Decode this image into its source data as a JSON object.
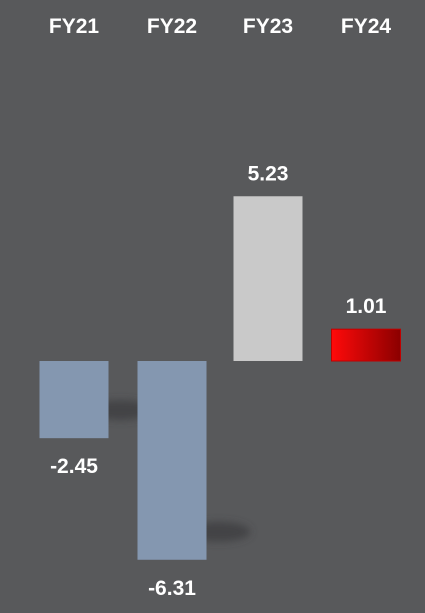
{
  "chart_data": {
    "type": "bar",
    "categories": [
      "FY21",
      "FY22",
      "FY23",
      "FY24"
    ],
    "values": [
      -2.45,
      -6.31,
      5.23,
      1.01
    ],
    "value_labels": [
      "-2.45",
      "-6.31",
      "5.23",
      "1.01"
    ],
    "title": "",
    "xlabel": "",
    "ylabel": "",
    "ylim": [
      -6.5,
      5.5
    ],
    "grid": false,
    "legend": "none",
    "colors": {
      "background": "#58595b",
      "negative": "#8497b0",
      "positive": "#c9c9c9",
      "highlight_start": "#ff0a0a",
      "highlight_end": "#8b0000"
    }
  }
}
